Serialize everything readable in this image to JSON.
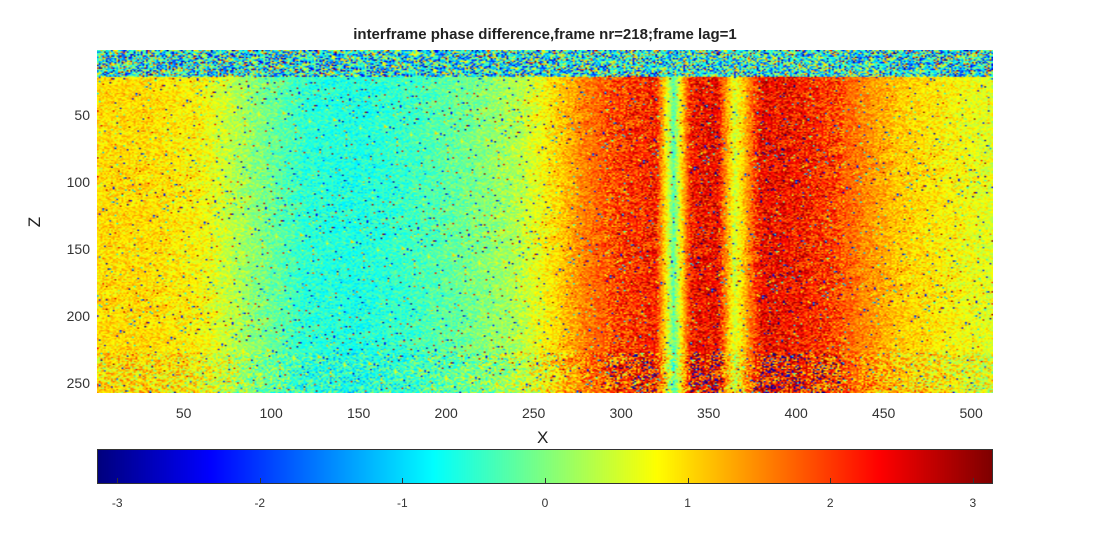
{
  "chart_data": {
    "type": "heatmap",
    "title": "interframe phase difference,frame nr=218;frame lag=1",
    "xlabel": "X",
    "ylabel": "Z",
    "xlim": [
      1,
      512
    ],
    "ylim": [
      1,
      256
    ],
    "y_direction": "reversed",
    "xticks": [
      50,
      100,
      150,
      200,
      250,
      300,
      350,
      400,
      450,
      500
    ],
    "yticks": [
      50,
      100,
      150,
      200,
      250
    ],
    "colormap": "jet",
    "clim": [
      -3.1416,
      3.1416
    ],
    "colorbar": {
      "location": "bottom",
      "ticks": [
        -3,
        -2,
        -1,
        0,
        1,
        2,
        3
      ]
    },
    "column_mean_profile": {
      "x": [
        1,
        30,
        60,
        90,
        120,
        150,
        180,
        210,
        240,
        260,
        280,
        300,
        320,
        330,
        340,
        355,
        365,
        380,
        400,
        420,
        440,
        460,
        480,
        500,
        512
      ],
      "value": [
        1.0,
        1.0,
        0.8,
        0.1,
        -0.5,
        -0.6,
        -0.4,
        -0.1,
        0.3,
        0.9,
        1.6,
        2.0,
        2.2,
        -0.2,
        2.3,
        2.4,
        0.5,
        2.4,
        2.3,
        2.0,
        1.5,
        1.1,
        0.9,
        0.7,
        0.6
      ]
    },
    "noisy_top_rows_until_z": 20,
    "bright_line_at_z": 20
  }
}
